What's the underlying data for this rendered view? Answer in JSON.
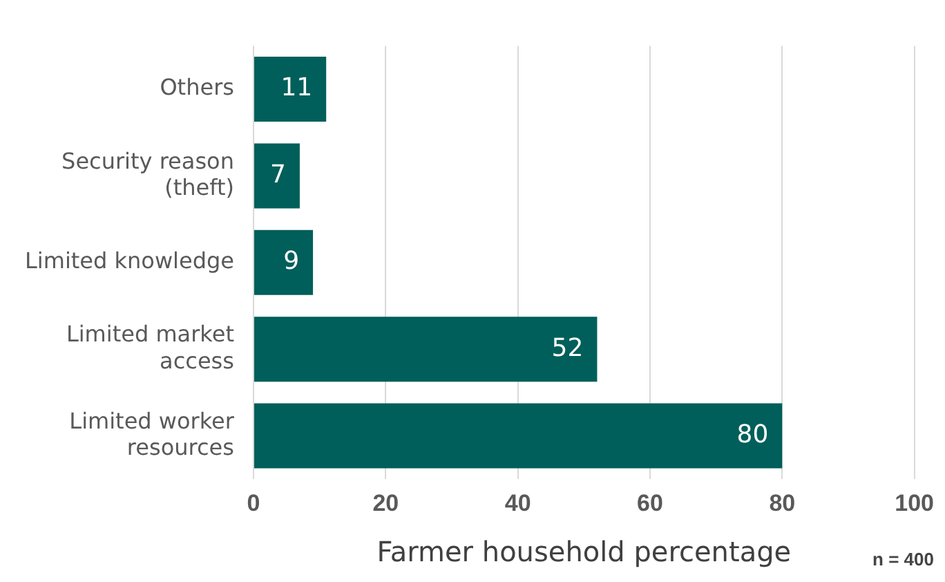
{
  "chart_data": {
    "type": "bar",
    "orientation": "horizontal",
    "categories": [
      "Others",
      "Security reason (theft)",
      "Limited knowledge",
      "Limited market access",
      "Limited worker resources"
    ],
    "values": [
      11,
      7,
      9,
      52,
      80
    ],
    "color": "#005f5a",
    "xlim": [
      0,
      100
    ],
    "xticks": [
      0,
      20,
      40,
      60,
      80,
      100
    ],
    "grid": "x",
    "data_labels": true,
    "xlabel": "Farmer household percentage",
    "annotations": [
      "n = 400"
    ],
    "legend": false
  }
}
